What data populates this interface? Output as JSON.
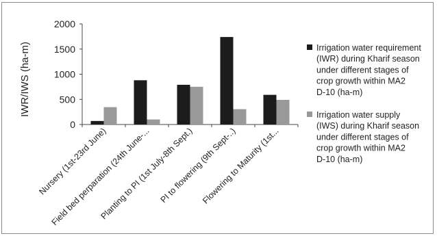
{
  "chart_data": {
    "type": "bar",
    "title": "",
    "xlabel": "",
    "ylabel": "IWR/IWS (ha-m)",
    "categories": [
      "Nursery (1st-23rd June)",
      "Field bed perparation (24th June-...",
      "Planting to PI (1st July-8th Sept.)",
      "PI to flowering (9th Sept-..)",
      "Flowering to Maturity (1st..."
    ],
    "series": [
      {
        "name": "Irrigation water requirement (IWR) during Kharif season under different stages of crop growth within MA2 D-10 (ha-m)",
        "legend_lines": [
          "Irrigation water requirement",
          "(IWR) during Kharif season",
          "under different stages of",
          "crop growth within MA2",
          "D-10 (ha-m)"
        ],
        "color": "#1c1c1c",
        "values": [
          70,
          880,
          790,
          1740,
          590
        ]
      },
      {
        "name": "Irrigation water supply (IWS) during Kharif season under different stages of crop growth within MA2 D-10 (ha-m)",
        "legend_lines": [
          "Irrigation water supply",
          "(IWS) during Kharif season",
          "under different stages of",
          "crop growth within MA2",
          "D-10 (ha-m)"
        ],
        "color": "#999999",
        "values": [
          345,
          100,
          750,
          305,
          490
        ]
      }
    ],
    "ylim": [
      0,
      2000
    ],
    "yticks": [
      0,
      500,
      1000,
      1500,
      2000
    ],
    "grid": false,
    "legend_position": "right"
  }
}
